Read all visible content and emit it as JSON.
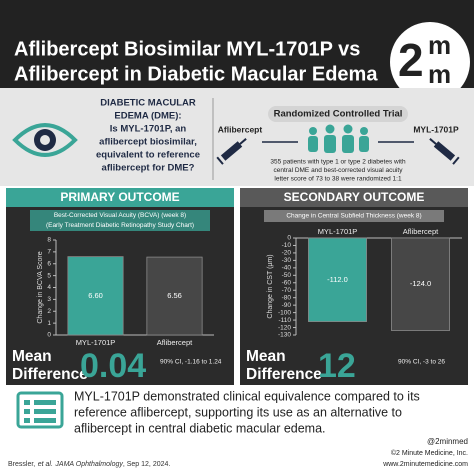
{
  "header": {
    "title": [
      "Aflibercept Biosimilar MYL-1701P vs",
      "Aflibercept in Diabetic Macular Edema"
    ],
    "logo": [
      "2",
      "m",
      "m"
    ]
  },
  "question": [
    "DIABETIC MACULAR",
    "EDEMA (DME):",
    "Is MYL-1701P, an",
    "aflibercept biosimilar,",
    "equivalent to reference",
    "aflibercept for DME?"
  ],
  "trial": {
    "title": "Randomized Controlled Trial",
    "arm_left": "Aflibercept",
    "arm_right": "MYL-1701P",
    "description": [
      "355 patients with type 1 or type 2  diabetes with",
      "central DME and best-corrected visual acuity",
      "letter score of 73 to 38 were randomized 1:1"
    ]
  },
  "chart_data": [
    {
      "type": "bar",
      "section": "PRIMARY OUTCOME",
      "title": "Best-Corrected Visual Acuity (BCVA) (week 8)",
      "subtitle": "(Early Treatment Diabetic Retinopathy Study Chart)",
      "y_label": "Change in BCVA Score",
      "categories": [
        "MYL-1701P",
        "Aflibercept"
      ],
      "values": [
        6.6,
        6.56
      ],
      "value_labels": [
        "6.60",
        "6.56"
      ],
      "colors": [
        "#3aa597",
        "#474747"
      ],
      "ylim": [
        0,
        8
      ],
      "yticks": [
        0,
        1,
        2,
        3,
        4,
        5,
        6,
        7,
        8
      ],
      "summary_label": [
        "Mean",
        "Difference"
      ],
      "summary_value": 0.04,
      "summary_ci": "90% CI, -1.16 to 1.24"
    },
    {
      "type": "bar",
      "section": "SECONDARY OUTCOME",
      "title": "Change in Central Subfield Thickness (week 8)",
      "y_label": "Change in CST (µm)",
      "categories": [
        "MYL-1701P",
        "Aflibercept"
      ],
      "values": [
        -112,
        -124
      ],
      "value_labels": [
        "-112.0",
        "-124.0"
      ],
      "colors": [
        "#3aa597",
        "#474747"
      ],
      "ylim": [
        -130,
        0
      ],
      "yticks": [
        0,
        -10,
        -20,
        -30,
        -40,
        -50,
        -60,
        -70,
        -80,
        -90,
        -100,
        -110,
        -120,
        -130
      ],
      "summary_label": [
        "Mean",
        "Difference"
      ],
      "summary_value": 12,
      "summary_ci": "90% CI, -3 to 26"
    }
  ],
  "conclusion": [
    "MYL-1701P demonstrated clinical equivalence compared to its",
    "reference aflibercept, supporting its use as an alternative to",
    "aflibercept in central diabetic macular edema."
  ],
  "footer": {
    "citation": [
      "Bressler,",
      "et al.",
      "JAMA Ophthalmology",
      ", Sep 12, 2024."
    ],
    "handle": "@2minmed",
    "copyright": "©2 Minute Medicine, Inc.",
    "website": "www.2minutemedicine.com"
  }
}
